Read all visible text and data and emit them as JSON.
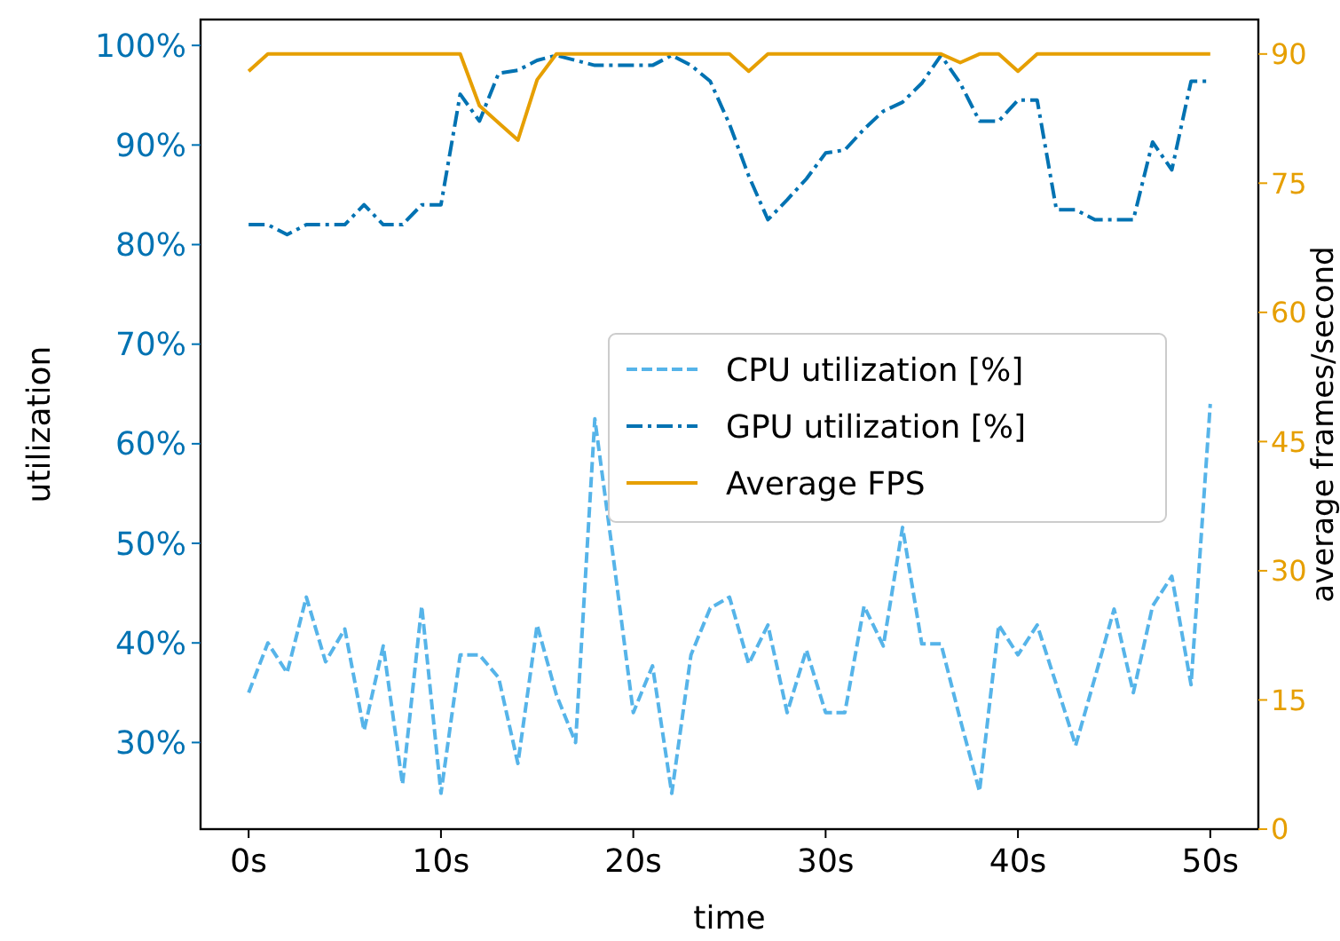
{
  "chart_data": {
    "type": "line",
    "xlabel": "time",
    "ylabel": "utilization",
    "y2label": "average frames/second",
    "x": [
      0,
      1,
      2,
      3,
      4,
      5,
      6,
      7,
      8,
      9,
      10,
      11,
      12,
      13,
      14,
      15,
      16,
      17,
      18,
      19,
      20,
      21,
      22,
      23,
      24,
      25,
      26,
      27,
      28,
      29,
      30,
      31,
      32,
      33,
      34,
      35,
      36,
      37,
      38,
      39,
      40,
      41,
      42,
      43,
      44,
      45,
      46,
      47,
      48,
      49,
      50
    ],
    "xlim": [
      -2.5,
      52.5
    ],
    "xticks": [
      {
        "value": 0,
        "label": "0s"
      },
      {
        "value": 10,
        "label": "10s"
      },
      {
        "value": 20,
        "label": "20s"
      },
      {
        "value": 30,
        "label": "30s"
      },
      {
        "value": 40,
        "label": "40s"
      },
      {
        "value": 50,
        "label": "50s"
      }
    ],
    "ylim": [
      21.3,
      102.6
    ],
    "yticks": [
      {
        "value": 30,
        "label": "30%"
      },
      {
        "value": 40,
        "label": "40%"
      },
      {
        "value": 50,
        "label": "50%"
      },
      {
        "value": 60,
        "label": "60%"
      },
      {
        "value": 70,
        "label": "70%"
      },
      {
        "value": 80,
        "label": "80%"
      },
      {
        "value": 90,
        "label": "90%"
      },
      {
        "value": 100,
        "label": "100%"
      }
    ],
    "y2lim": [
      0,
      94
    ],
    "y2ticks": [
      0,
      15,
      30,
      45,
      60,
      75,
      90
    ],
    "legend": "center",
    "grid": false,
    "marker": "none",
    "series": [
      {
        "name": "CPU utilization [%]",
        "color": "#56b4e9",
        "line_style": "dashed",
        "values": [
          35,
          40,
          37,
          44.6,
          38.1,
          41.4,
          31.2,
          39.7,
          25.8,
          43.7,
          24.9,
          38.8,
          38.8,
          36.5,
          27.9,
          41.8,
          34.8,
          30,
          62.5,
          48,
          33,
          37.7,
          24.9,
          38.8,
          43.5,
          44.6,
          37.9,
          41.8,
          33,
          39.3,
          33,
          33,
          43.7,
          39.7,
          51.6,
          39.9,
          39.9,
          32.3,
          25.1,
          41.8,
          38.8,
          41.8,
          35.8,
          29.7,
          36.5,
          43.4,
          35,
          43.7,
          46.7,
          35.8,
          64
        ]
      },
      {
        "name": "GPU utilization [%]",
        "color": "#0072b2",
        "line_style": "dashdot",
        "values": [
          82,
          82,
          81,
          82,
          82,
          82,
          84,
          82,
          82,
          84,
          84,
          95.1,
          92.4,
          97.2,
          97.5,
          98.5,
          99,
          98.5,
          98,
          98,
          98,
          98,
          99,
          98,
          96.4,
          92.1,
          86.9,
          82.5,
          84.5,
          86.6,
          89.2,
          89.5,
          91.6,
          93.4,
          94.3,
          96.2,
          99,
          96.2,
          92.4,
          92.4,
          94.5,
          94.5,
          83.5,
          83.5,
          82.5,
          82.5,
          82.5,
          90.3,
          87.5,
          96.4,
          96.4
        ]
      },
      {
        "name": "Average FPS",
        "color": "#e69f00",
        "line_style": "solid",
        "axis": "y2",
        "values": [
          88,
          90,
          90,
          90,
          90,
          90,
          90,
          90,
          90,
          90,
          90,
          90,
          84,
          82,
          80,
          87,
          90,
          90,
          90,
          90,
          90,
          90,
          90,
          90,
          90,
          90,
          88,
          90,
          90,
          90,
          90,
          90,
          90,
          90,
          90,
          90,
          90,
          89,
          90,
          90,
          88,
          90,
          90,
          90,
          90,
          90,
          90,
          90,
          90,
          90,
          90
        ]
      }
    ]
  }
}
